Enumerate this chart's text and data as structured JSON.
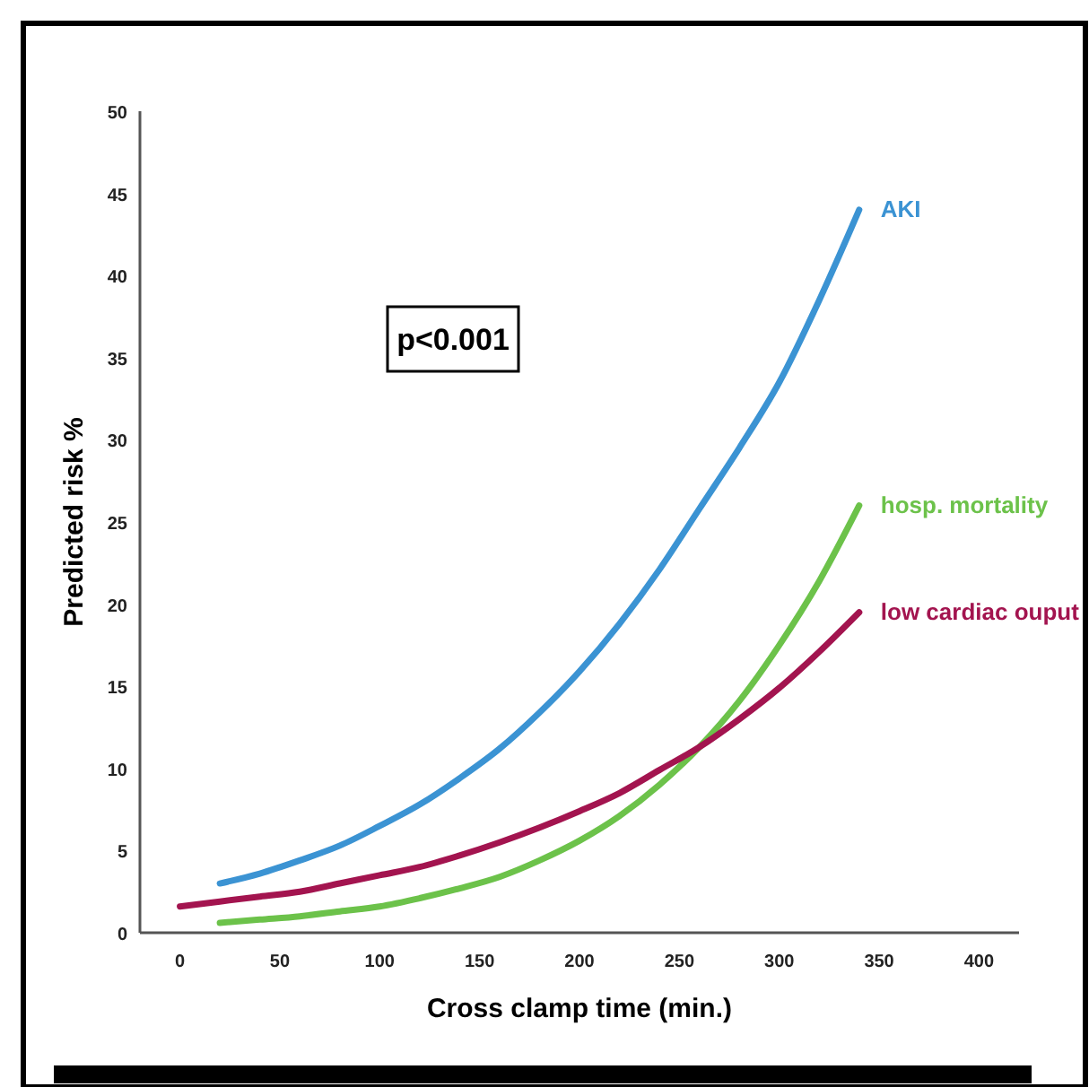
{
  "chart_data": {
    "type": "line",
    "xlabel": "Cross clamp time (min.)",
    "ylabel": "Predicted risk %",
    "xlim": [
      -20,
      420
    ],
    "xticks": [
      0,
      50,
      100,
      150,
      200,
      250,
      300,
      350,
      400
    ],
    "ylim": [
      0,
      50
    ],
    "yticks": [
      0,
      5,
      10,
      15,
      20,
      25,
      30,
      35,
      40,
      45,
      50
    ],
    "grid": false,
    "marker": "none",
    "line_style": "solid",
    "annotations": [
      "p<0.001"
    ],
    "series": [
      {
        "name": "AKI",
        "color": "#3b93d3",
        "x": [
          20,
          40,
          60,
          80,
          100,
          120,
          140,
          160,
          180,
          200,
          220,
          240,
          260,
          280,
          300,
          320,
          340
        ],
        "values": [
          3.0,
          3.6,
          4.4,
          5.3,
          6.5,
          7.8,
          9.4,
          11.2,
          13.4,
          15.9,
          18.8,
          22.1,
          25.8,
          29.5,
          33.5,
          38.5,
          44
        ]
      },
      {
        "name": "hosp. mortality",
        "color": "#6cc24a",
        "x": [
          20,
          40,
          60,
          80,
          100,
          120,
          140,
          160,
          180,
          200,
          220,
          240,
          260,
          280,
          300,
          320,
          340
        ],
        "values": [
          0.6,
          0.8,
          1.0,
          1.3,
          1.6,
          2.1,
          2.7,
          3.4,
          4.4,
          5.6,
          7.1,
          9.0,
          11.3,
          14.1,
          17.5,
          21.4,
          26
        ]
      },
      {
        "name": "low cardiac ouput",
        "color": "#a3144f",
        "x": [
          0,
          20,
          40,
          60,
          80,
          100,
          120,
          140,
          160,
          180,
          200,
          220,
          240,
          260,
          280,
          300,
          320,
          340
        ],
        "values": [
          1.6,
          1.9,
          2.2,
          2.5,
          3.0,
          3.5,
          4.0,
          4.7,
          5.5,
          6.4,
          7.4,
          8.5,
          9.9,
          11.3,
          13.0,
          14.9,
          17.1,
          19.5
        ]
      }
    ]
  }
}
